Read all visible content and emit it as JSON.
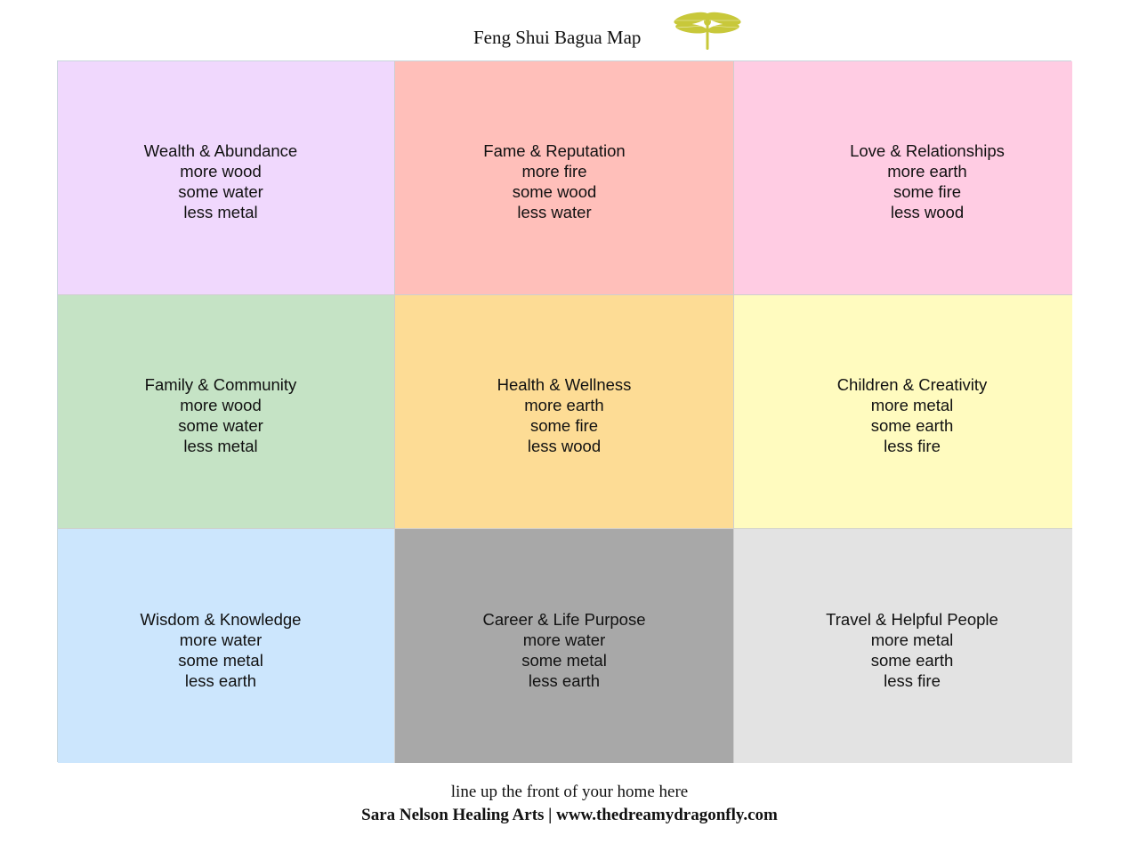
{
  "header": {
    "title": "Feng Shui Bagua Map",
    "logo_icon": "dragonfly-icon",
    "logo_color": "#c8c83a"
  },
  "grid": {
    "cells": [
      {
        "area": "Wealth & Abundance",
        "more": "more wood",
        "some": "some water",
        "less": "less metal",
        "color": "#f0d8fd"
      },
      {
        "area": "Fame & Reputation",
        "more": "more fire",
        "some": "some wood",
        "less": "less water",
        "color": "#ffbfba"
      },
      {
        "area": "Love & Relationships",
        "more": "more earth",
        "some": "some fire",
        "less": "less wood",
        "color": "#ffcce3"
      },
      {
        "area": "Family & Community",
        "more": "more wood",
        "some": "some water",
        "less": "less metal",
        "color": "#c5e3c5"
      },
      {
        "area": "Health & Wellness",
        "more": "more earth",
        "some": "some fire",
        "less": "less wood",
        "color": "#fddc95"
      },
      {
        "area": "Children & Creativity",
        "more": "more metal",
        "some": "some earth",
        "less": "less fire",
        "color": "#fffbbf"
      },
      {
        "area": "Wisdom & Knowledge",
        "more": "more water",
        "some": "some metal",
        "less": "less earth",
        "color": "#cce6fd"
      },
      {
        "area": "Career & Life Purpose",
        "more": "more water",
        "some": "some metal",
        "less": "less earth",
        "color": "#a8a8a8"
      },
      {
        "area": "Travel & Helpful People",
        "more": "more metal",
        "some": "some earth",
        "less": "less fire",
        "color": "#e3e3e3"
      }
    ]
  },
  "footer": {
    "instruction": "line up the front of your home here",
    "credit": "Sara Nelson Healing Arts | www.thedreamydragonfly.com"
  }
}
